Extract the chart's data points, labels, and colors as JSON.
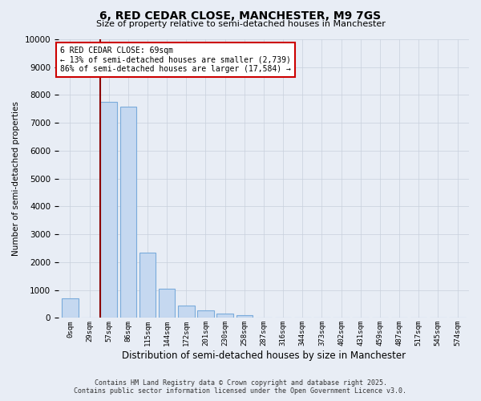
{
  "title": "6, RED CEDAR CLOSE, MANCHESTER, M9 7GS",
  "subtitle": "Size of property relative to semi-detached houses in Manchester",
  "xlabel": "Distribution of semi-detached houses by size in Manchester",
  "ylabel": "Number of semi-detached properties",
  "bar_labels": [
    "0sqm",
    "29sqm",
    "57sqm",
    "86sqm",
    "115sqm",
    "144sqm",
    "172sqm",
    "201sqm",
    "230sqm",
    "258sqm",
    "287sqm",
    "316sqm",
    "344sqm",
    "373sqm",
    "402sqm",
    "431sqm",
    "459sqm",
    "487sqm",
    "517sqm",
    "545sqm",
    "574sqm"
  ],
  "bar_values": [
    700,
    0,
    7750,
    7580,
    2350,
    1050,
    430,
    260,
    150,
    110,
    0,
    0,
    0,
    0,
    0,
    0,
    0,
    0,
    0,
    0,
    0
  ],
  "bar_color": "#c5d8f0",
  "bar_edge_color": "#7aabdb",
  "grid_color": "#c8d0dc",
  "ylim": [
    0,
    10000
  ],
  "yticks": [
    0,
    1000,
    2000,
    3000,
    4000,
    5000,
    6000,
    7000,
    8000,
    9000,
    10000
  ],
  "property_line_color": "#8b0000",
  "annotation_title": "6 RED CEDAR CLOSE: 69sqm",
  "annotation_line1": "← 13% of semi-detached houses are smaller (2,739)",
  "annotation_line2": "86% of semi-detached houses are larger (17,584) →",
  "annotation_box_color": "#ffffff",
  "annotation_box_edge": "#cc0000",
  "footer_line1": "Contains HM Land Registry data © Crown copyright and database right 2025.",
  "footer_line2": "Contains public sector information licensed under the Open Government Licence v3.0.",
  "background_color": "#e8edf5"
}
